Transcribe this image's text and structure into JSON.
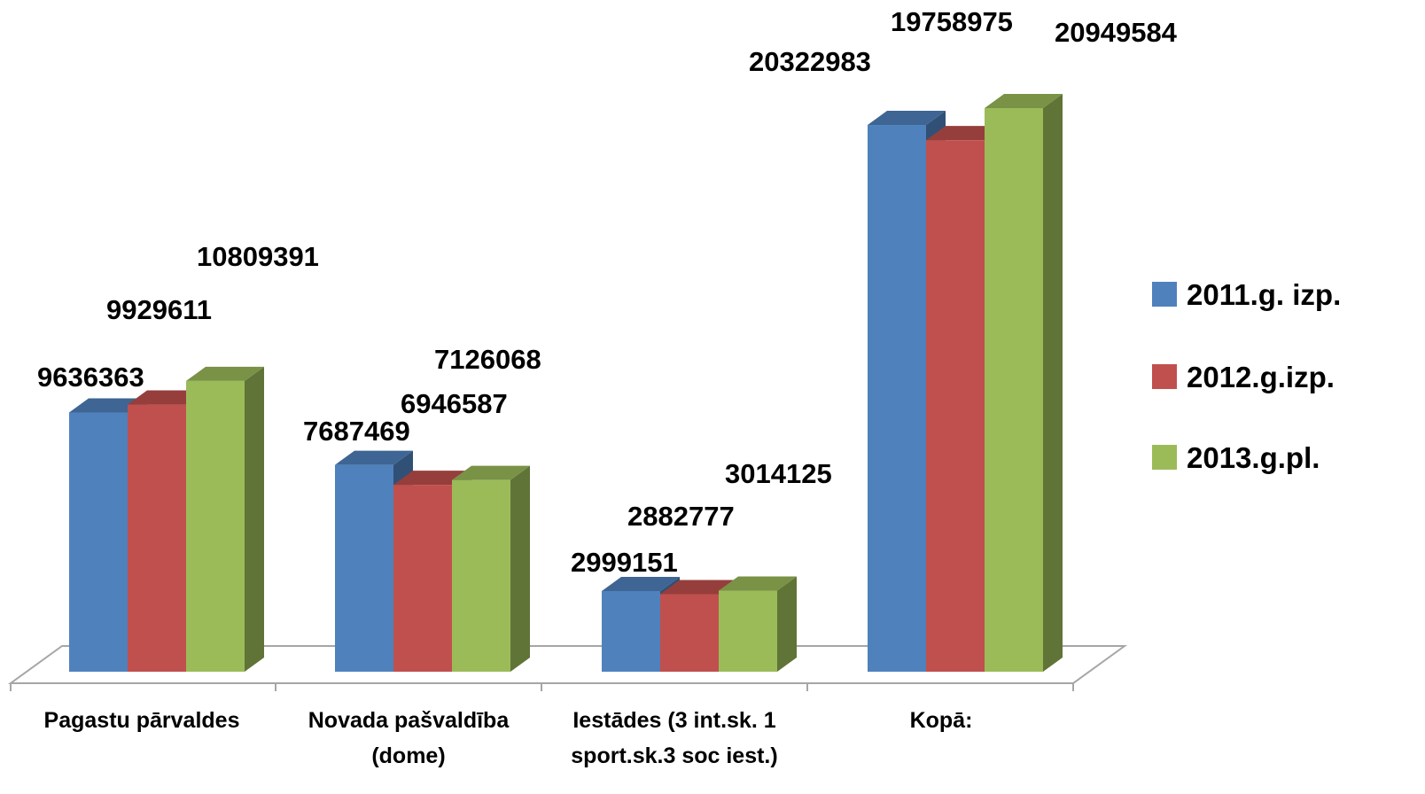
{
  "chart_data": {
    "type": "bar",
    "style": "3d-clustered-column",
    "categories": [
      [
        "Pagastu pārvaldes"
      ],
      [
        "Novada pašvaldība",
        "(dome)"
      ],
      [
        "Iestādes (3 int.sk. 1",
        "sport.sk.3 soc iest.)"
      ],
      [
        "Kopā:"
      ]
    ],
    "series": [
      {
        "name": "2011.g. izp.",
        "color": "#4F81BD",
        "values": [
          9636363,
          7687469,
          2999151,
          20322983
        ]
      },
      {
        "name": "2012.g.izp.",
        "color": "#C0504D",
        "values": [
          9929611,
          6946587,
          2882777,
          19758975
        ]
      },
      {
        "name": "2013.g.pl.",
        "color": "#9BBB59",
        "values": [
          10809391,
          7126068,
          3014125,
          20949584
        ]
      }
    ],
    "title": "",
    "xlabel": "",
    "ylabel": "",
    "ylim": [
      0,
      20949584
    ],
    "grid": false,
    "legend_position": "right",
    "data_labels": true
  }
}
